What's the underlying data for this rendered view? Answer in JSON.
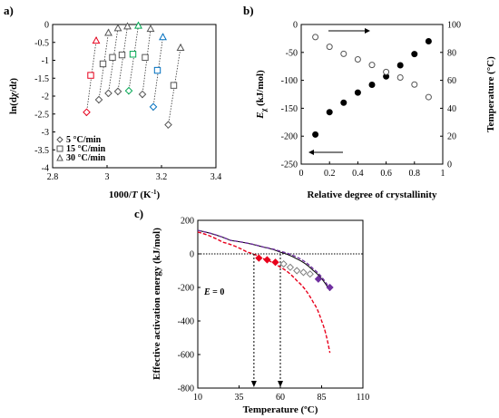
{
  "chart_data": [
    {
      "panel": "a)",
      "type": "scatter",
      "xlabel_parts": [
        "1000/",
        "T",
        " (K",
        "-1",
        ")"
      ],
      "ylabel_parts": [
        "ln(d",
        "χ",
        "/d",
        "t",
        ")"
      ],
      "xlim": [
        2.8,
        3.4
      ],
      "ylim": [
        -4,
        0
      ],
      "xticks": [
        "2.8",
        "3",
        "3.2",
        "3.4"
      ],
      "yticks": [
        "0",
        "-0.5",
        "-1",
        "-1.5",
        "-2",
        "-2.5",
        "-3",
        "-3.5",
        "-4"
      ],
      "legend": [
        "5 °C/min",
        "15 °C/min",
        "30 °C/min"
      ],
      "highlight_colors": [
        "#e8001c",
        "#00a651",
        "#0070c0"
      ],
      "series": [
        {
          "marker": "diamond",
          "x": [
            2.925,
            2.97,
            3.005,
            3.04,
            3.08,
            3.13,
            3.17,
            3.225
          ],
          "y": [
            -2.45,
            -2.1,
            -1.92,
            -1.87,
            -1.85,
            -1.95,
            -2.3,
            -2.8
          ]
        },
        {
          "marker": "square",
          "x": [
            2.94,
            2.985,
            3.02,
            3.055,
            3.095,
            3.14,
            3.185,
            3.245
          ],
          "y": [
            -1.42,
            -1.1,
            -0.92,
            -0.85,
            -0.83,
            -0.92,
            -1.28,
            -1.7
          ]
        },
        {
          "marker": "triangle",
          "x": [
            2.96,
            3.005,
            3.04,
            3.075,
            3.115,
            3.16,
            3.205,
            3.27
          ],
          "y": [
            -0.45,
            -0.23,
            -0.1,
            -0.05,
            -0.03,
            -0.12,
            -0.35,
            -0.65
          ]
        }
      ],
      "highlight_points": [
        0,
        4,
        6
      ]
    },
    {
      "panel": "b)",
      "type": "scatter",
      "xlabel": "Relative degree of crystallinity",
      "ylabel_parts": [
        "E",
        "χ",
        " (kJ/mol)"
      ],
      "y2label": "Temperature (°C)",
      "xlim": [
        0,
        1
      ],
      "ylim": [
        -250,
        0
      ],
      "y2lim": [
        0,
        100
      ],
      "xticks": [
        "0",
        "0.2",
        "0.4",
        "0.6",
        "0.8",
        "1"
      ],
      "yticks": [
        "0",
        "-50",
        "-100",
        "-150",
        "-200",
        "-250"
      ],
      "y2ticks": [
        "0",
        "20",
        "40",
        "60",
        "80",
        "100"
      ],
      "series": [
        {
          "axis": "left",
          "marker": "filled-circle",
          "x": [
            0.1,
            0.2,
            0.3,
            0.4,
            0.5,
            0.6,
            0.7,
            0.8,
            0.9
          ],
          "y": [
            -197,
            -157,
            -140,
            -122,
            -108,
            -93,
            -73,
            -53,
            -30
          ]
        },
        {
          "axis": "right",
          "marker": "open-circle",
          "x": [
            0.1,
            0.2,
            0.3,
            0.4,
            0.5,
            0.6,
            0.7,
            0.8,
            0.9
          ],
          "y": [
            91,
            84,
            79,
            75,
            71,
            66,
            62,
            57,
            48
          ]
        }
      ]
    },
    {
      "panel": "c)",
      "type": "line",
      "xlabel": "Temperature (ºC)",
      "ylabel": "Effective activation energy (kJ/mol)",
      "xlim": [
        10,
        110
      ],
      "ylim": [
        -800,
        200
      ],
      "xticks": [
        "10",
        "35",
        "60",
        "85",
        "110"
      ],
      "yticks": [
        "200",
        "0",
        "-200",
        "-400",
        "-600",
        "-800"
      ],
      "annotation": "E = 0",
      "annotation_parts": [
        "E",
        " = 0"
      ],
      "series": [
        {
          "style": "black",
          "x": [
            10,
            30,
            50,
            60,
            70,
            80,
            90
          ],
          "y": [
            140,
            80,
            40,
            10,
            -30,
            -100,
            -220
          ]
        },
        {
          "style": "red-dashed",
          "x": [
            10,
            25,
            40,
            50,
            60,
            70,
            80,
            85,
            90
          ],
          "y": [
            130,
            70,
            10,
            -30,
            -80,
            -160,
            -290,
            -400,
            -590
          ]
        },
        {
          "style": "purple-dashed",
          "x": [
            10,
            30,
            50,
            60,
            70,
            80,
            90
          ],
          "y": [
            140,
            80,
            40,
            15,
            -20,
            -90,
            -210
          ]
        }
      ],
      "points": [
        {
          "marker": "filled-diamond",
          "color": "#e8001c",
          "x": [
            47,
            52,
            57
          ],
          "y": [
            -25,
            -35,
            -50
          ]
        },
        {
          "marker": "open-diamond",
          "color": "#7f7f7f",
          "x": [
            62,
            66,
            70,
            74,
            78
          ],
          "y": [
            -60,
            -80,
            -100,
            -110,
            -120
          ]
        },
        {
          "marker": "filled-diamond",
          "color": "#7030a0",
          "x": [
            83,
            90
          ],
          "y": [
            -150,
            -200
          ]
        }
      ],
      "arrows_x": [
        44,
        60
      ]
    }
  ]
}
